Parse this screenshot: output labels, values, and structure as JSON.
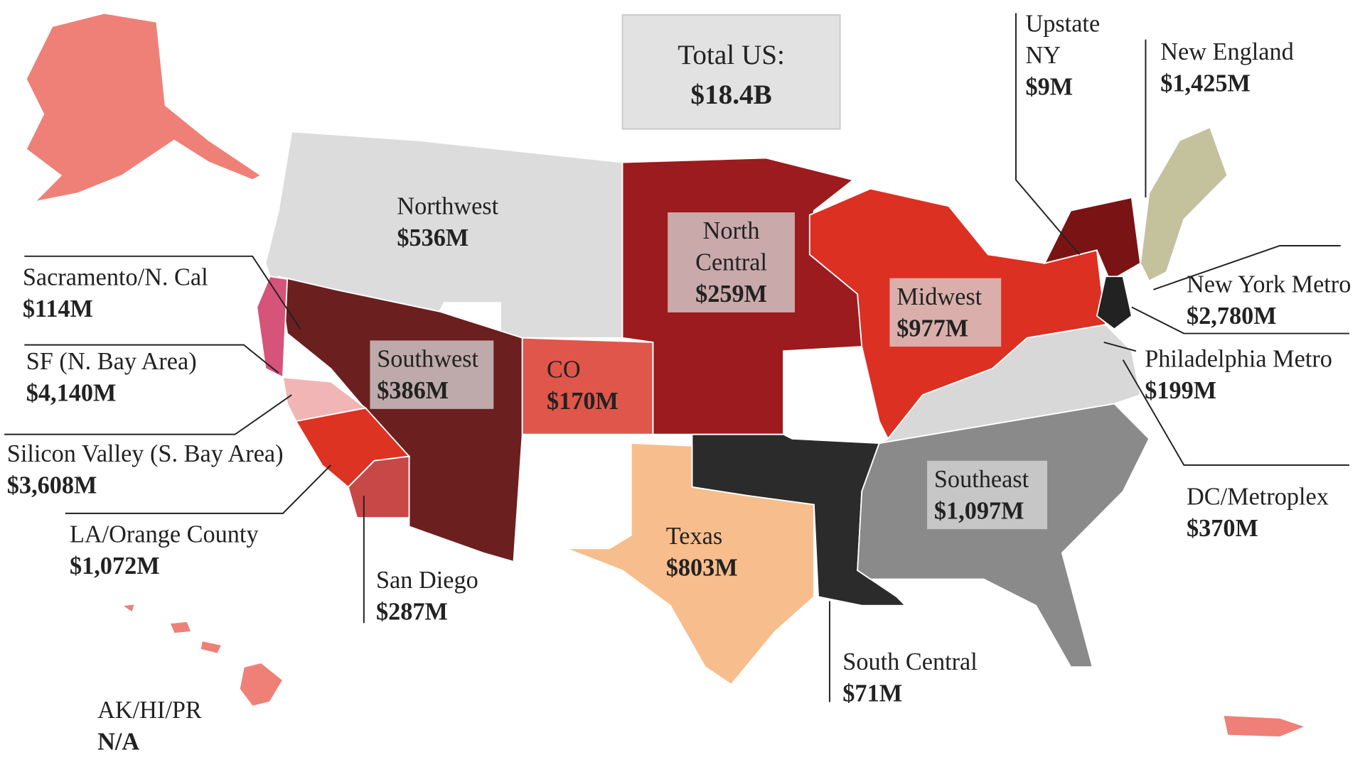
{
  "header": {
    "title": "Total US:",
    "total": "$18.4B"
  },
  "regions": [
    {
      "name": [
        "Upstate",
        "NY"
      ],
      "value": "$9M"
    },
    {
      "name": [
        "New England"
      ],
      "value": "$1,425M"
    },
    {
      "name": [
        "New York Metro"
      ],
      "value": "$2,780M"
    },
    {
      "name": [
        "Philadelphia Metro"
      ],
      "value": "$199M"
    },
    {
      "name": [
        "DC/Metroplex"
      ],
      "value": "$370M"
    },
    {
      "name": [
        "Southeast"
      ],
      "value": "$1,097M"
    },
    {
      "name": [
        "South Central"
      ],
      "value": "$71M"
    },
    {
      "name": [
        "Texas"
      ],
      "value": "$803M"
    },
    {
      "name": [
        "Midwest"
      ],
      "value": "$977M"
    },
    {
      "name": [
        "North",
        "Central"
      ],
      "value": "$259M"
    },
    {
      "name": [
        "CO"
      ],
      "value": "$170M"
    },
    {
      "name": [
        "Southwest"
      ],
      "value": "$386M"
    },
    {
      "name": [
        "Northwest"
      ],
      "value": "$536M"
    },
    {
      "name": [
        "San Diego"
      ],
      "value": "$287M"
    },
    {
      "name": [
        "LA/Orange County"
      ],
      "value": "$1,072M"
    },
    {
      "name": [
        "Silicon Valley (S. Bay Area)"
      ],
      "value": "$3,608M"
    },
    {
      "name": [
        "SF (N. Bay Area)"
      ],
      "value": "$4,140M"
    },
    {
      "name": [
        "Sacramento/N. Cal"
      ],
      "value": "$114M"
    },
    {
      "name": [
        "AK/HI/PR"
      ],
      "value": "N/A"
    }
  ]
}
